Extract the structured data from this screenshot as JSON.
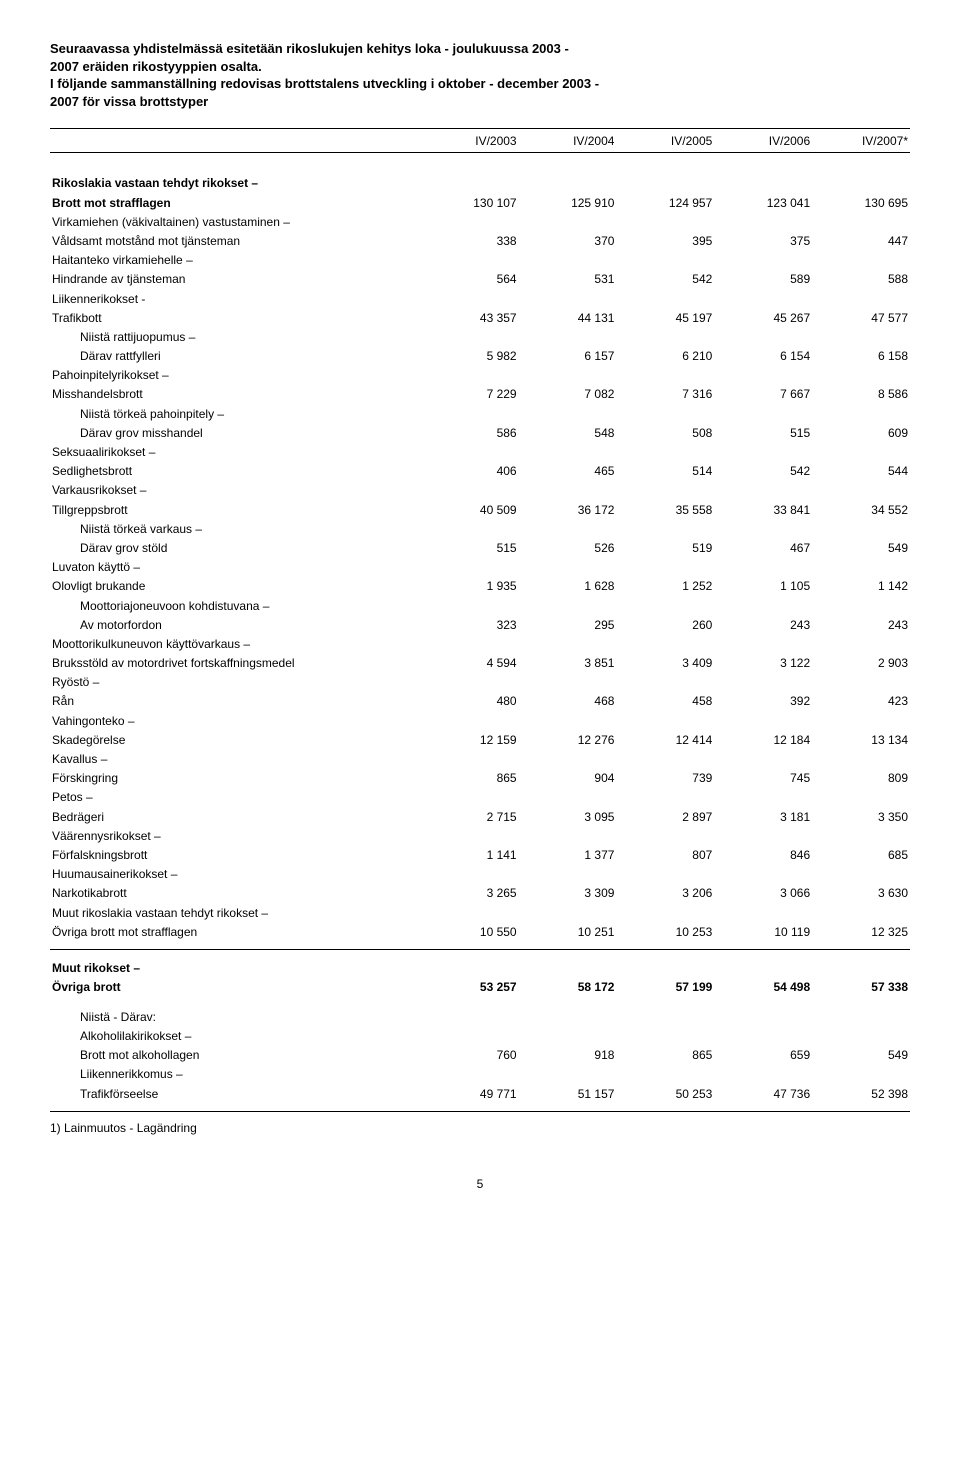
{
  "intro": {
    "line1": "Seuraavassa yhdistelmässä esitetään rikoslukujen kehitys loka - joulukuussa 2003 -",
    "line2": "2007 eräiden rikostyyppien osalta.",
    "line3": "I följande sammanställning redovisas brottstalens utveckling i oktober - december 2003 -",
    "line4": "2007 för vissa brottstyper"
  },
  "headers": [
    "IV/2003",
    "IV/2004",
    "IV/2005",
    "IV/2006",
    "IV/2007*"
  ],
  "sectionA": {
    "title1": "Rikoslakia vastaan tehdyt rikokset –",
    "title2": "Brott mot strafflagen",
    "values": [
      "130 107",
      "125 910",
      "124 957",
      "123 041",
      "130 695"
    ]
  },
  "rows": [
    {
      "l1": "Virkamiehen (väkivaltainen) vastustaminen –",
      "l2": "Våldsamt motstånd mot tjänsteman",
      "v": [
        "338",
        "370",
        "395",
        "375",
        "447"
      ]
    },
    {
      "l1": "Haitanteko virkamiehelle –",
      "l2": "Hindrande av tjänsteman",
      "v": [
        "564",
        "531",
        "542",
        "589",
        "588"
      ]
    },
    {
      "l1": "Liikennerikokset -",
      "l2": "Trafikbott",
      "v": [
        "43 357",
        "44 131",
        "45 197",
        "45 267",
        "47 577"
      ]
    },
    {
      "indent": 1,
      "l1": "Niistä rattijuopumus –",
      "l2": "Därav rattfylleri",
      "v": [
        "5 982",
        "6 157",
        "6 210",
        "6 154",
        "6 158"
      ]
    },
    {
      "l1": "Pahoinpitelyrikokset –",
      "l2": "Misshandelsbrott",
      "v": [
        "7 229",
        "7 082",
        "7 316",
        "7 667",
        "8 586"
      ]
    },
    {
      "indent": 1,
      "l1": "Niistä törkeä pahoinpitely –",
      "l2": "Därav grov misshandel",
      "v": [
        "586",
        "548",
        "508",
        "515",
        "609"
      ]
    },
    {
      "l1": "Seksuaalirikokset –",
      "l2": "Sedlighetsbrott",
      "v": [
        "406",
        "465",
        "514",
        "542",
        "544"
      ]
    },
    {
      "l1": "Varkausrikokset –",
      "l2": "Tillgreppsbrott",
      "v": [
        "40 509",
        "36 172",
        "35 558",
        "33 841",
        "34 552"
      ]
    },
    {
      "indent": 1,
      "l1": "Niistä törkeä varkaus –",
      "l2": "Därav grov stöld",
      "v": [
        "515",
        "526",
        "519",
        "467",
        "549"
      ]
    },
    {
      "l1": "Luvaton käyttö –",
      "l2": "Olovligt brukande",
      "v": [
        "1 935",
        "1 628",
        "1 252",
        "1 105",
        "1 142"
      ]
    },
    {
      "indent": 1,
      "l1": "Moottoriajoneuvoon kohdistuvana –",
      "l2": "Av motorfordon",
      "v": [
        "323",
        "295",
        "260",
        "243",
        "243"
      ]
    },
    {
      "l1": "Moottorikulkuneuvon käyttövarkaus –",
      "l2": "Bruksstöld av motordrivet fortskaffningsmedel",
      "v": [
        "4 594",
        "3 851",
        "3 409",
        "3 122",
        "2 903"
      ]
    },
    {
      "l1": "Ryöstö –",
      "l2": "Rån",
      "v": [
        "480",
        "468",
        "458",
        "392",
        "423"
      ]
    },
    {
      "l1": "Vahingonteko –",
      "l2": "Skadegörelse",
      "v": [
        "12 159",
        "12 276",
        "12 414",
        "12 184",
        "13 134"
      ]
    },
    {
      "l1": "Kavallus –",
      "l2": "Förskingring",
      "v": [
        "865",
        "904",
        "739",
        "745",
        "809"
      ]
    },
    {
      "l1": "Petos –",
      "l2": "Bedrägeri",
      "v": [
        "2 715",
        "3 095",
        "2 897",
        "3 181",
        "3 350"
      ]
    },
    {
      "l1": "Väärennysrikokset –",
      "l2": "Förfalskningsbrott",
      "v": [
        "1 141",
        "1 377",
        "807",
        "846",
        "685"
      ]
    },
    {
      "l1": "Huumausainerikokset –",
      "l2": "Narkotikabrott",
      "v": [
        "3 265",
        "3 309",
        "3 206",
        "3 066",
        "3 630"
      ]
    },
    {
      "l1": "Muut rikoslakia vastaan tehdyt rikokset –",
      "l2": "Övriga brott mot strafflagen",
      "v": [
        "10 550",
        "10 251",
        "10 253",
        "10 119",
        "12 325"
      ]
    }
  ],
  "sectionB": {
    "title1": "Muut rikokset –",
    "title2": "Övriga brott",
    "values": [
      "53 257",
      "58 172",
      "57 199",
      "54 498",
      "57 338"
    ]
  },
  "subheader": "Niistä - Därav:",
  "rowsB": [
    {
      "l1": "Alkoholilakirikokset –",
      "l2": "Brott mot alkohollagen",
      "v": [
        "760",
        "918",
        "865",
        "659",
        "549"
      ]
    },
    {
      "l1": "Liikennerikkomus –",
      "l2": "Trafikförseelse",
      "v": [
        "49 771",
        "51 157",
        "50 253",
        "47 736",
        "52 398"
      ]
    }
  ],
  "footnote": "1) Lainmuutos - Lagändring",
  "pageNumber": "5"
}
